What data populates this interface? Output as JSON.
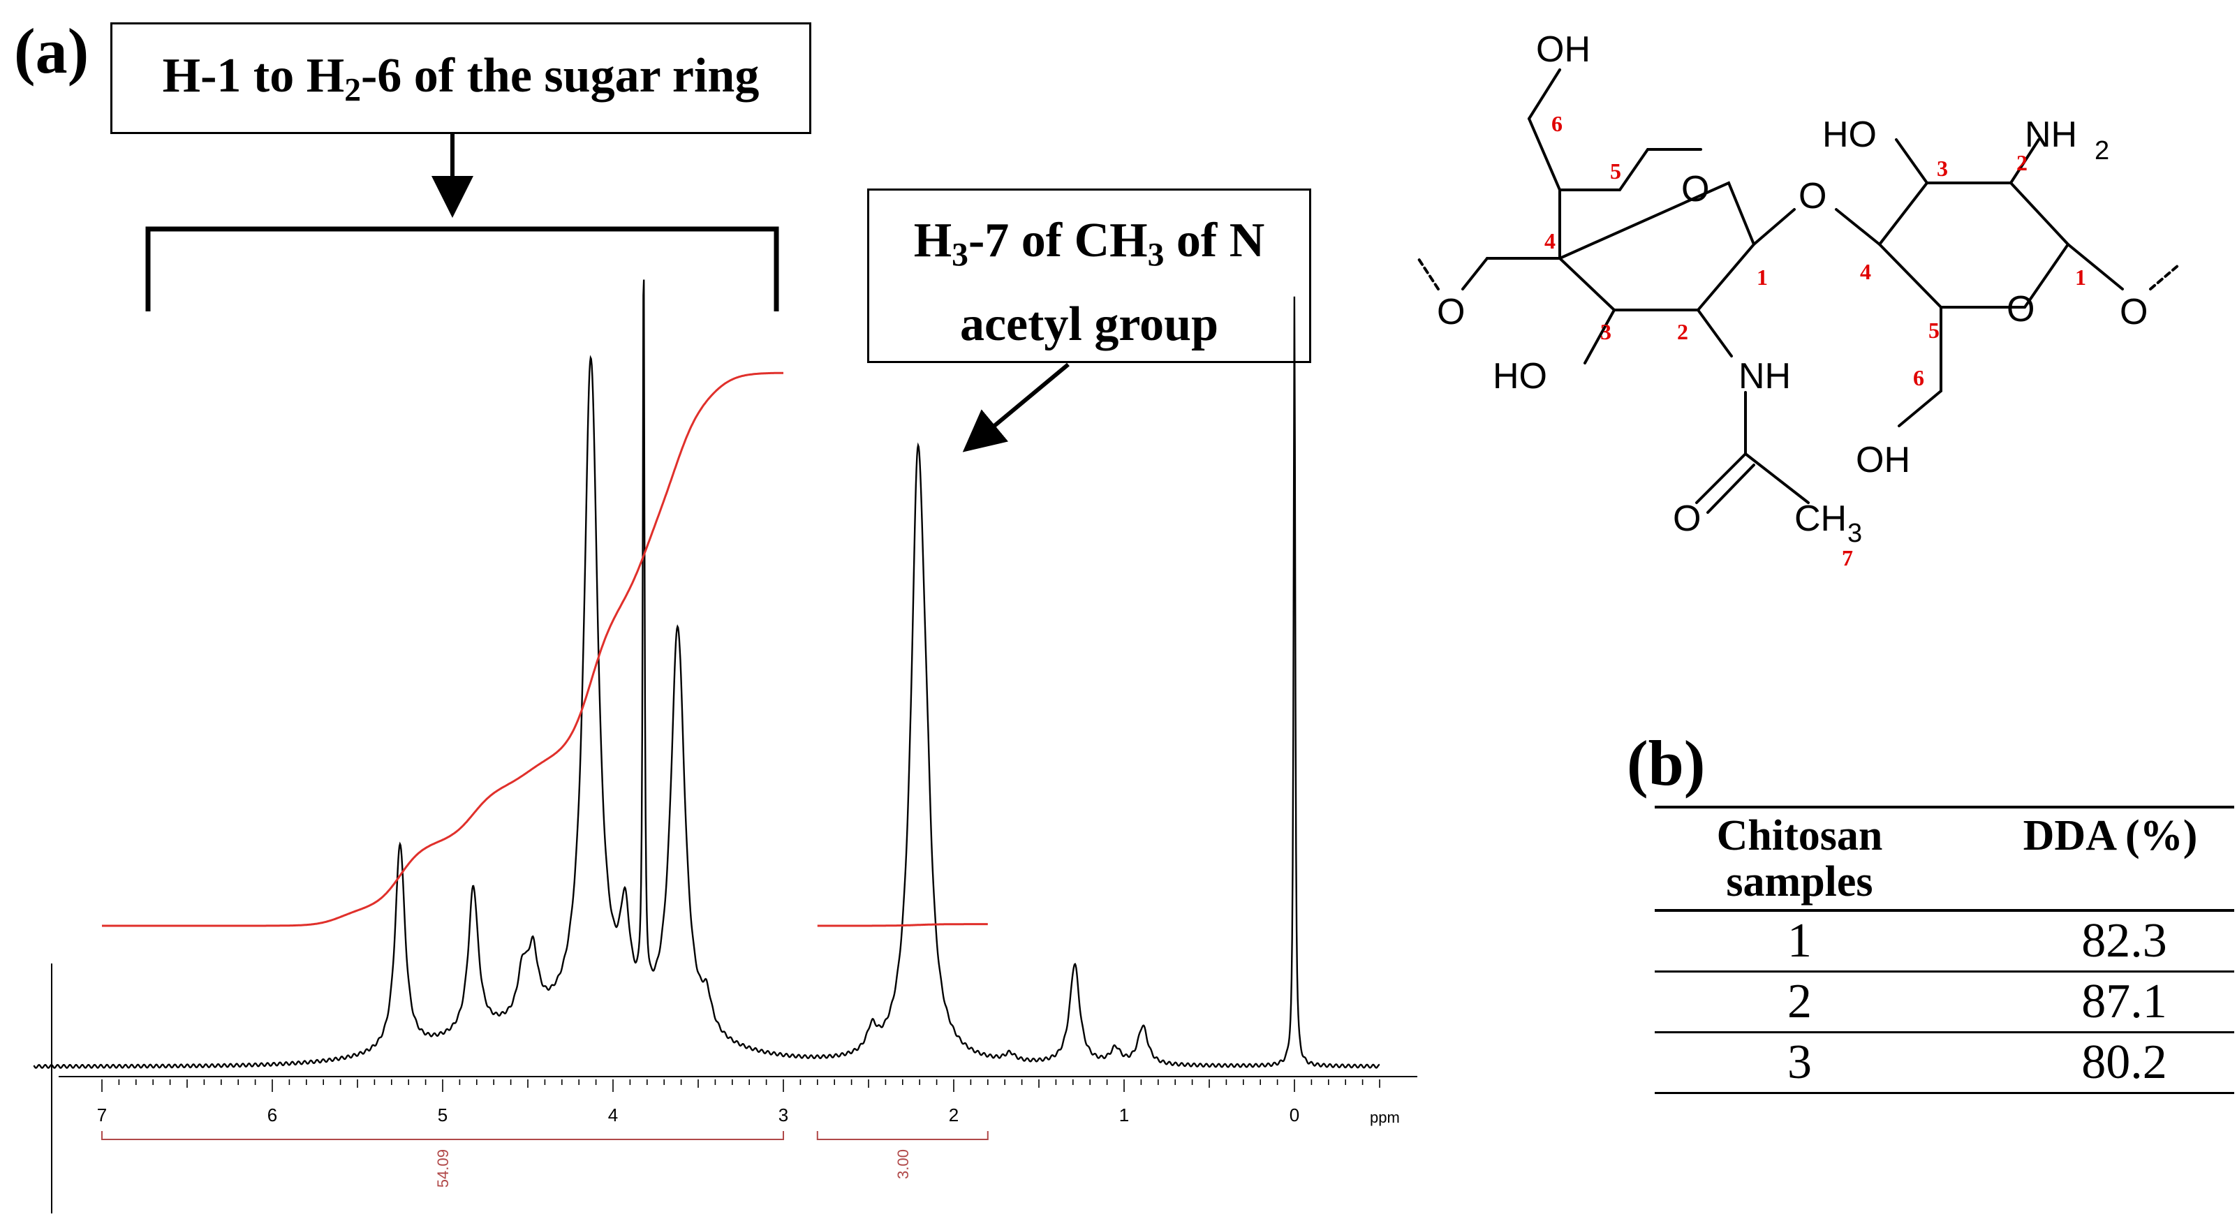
{
  "panel_a_label": "(a)",
  "panel_b_label": "(b)",
  "callout_sugar": {
    "prefix": "H-1 to H",
    "sub": "2",
    "suffix": "-6 of the sugar ring"
  },
  "callout_acetyl": {
    "line1_prefix": "H",
    "line1_sub1": "3",
    "line1_mid": "-7 of CH",
    "line1_sub2": "3",
    "line1_suffix": " of N",
    "line2": "acetyl group"
  },
  "chart_data": {
    "type": "line",
    "xlabel": "ppm",
    "x_ticks": [
      "7",
      "6",
      "5",
      "4",
      "3",
      "2",
      "1",
      "0"
    ],
    "xlim": [
      7.4,
      -0.5
    ],
    "x_reversed": true,
    "series": [
      {
        "kind": "spectrum",
        "peaks": [
          {
            "x": 5.25,
            "height": 0.27
          },
          {
            "x": 4.82,
            "height": 0.19
          },
          {
            "x": 4.53,
            "height": 0.06
          },
          {
            "x": 4.47,
            "height": 0.08
          },
          {
            "x": 4.13,
            "height": 0.86
          },
          {
            "x": 3.93,
            "height": 0.12
          },
          {
            "x": 3.82,
            "height": 0.99
          },
          {
            "x": 3.62,
            "height": 0.53
          },
          {
            "x": 3.45,
            "height": 0.04
          },
          {
            "x": 2.48,
            "height": 0.03
          },
          {
            "x": 2.21,
            "height": 0.76
          },
          {
            "x": 2.16,
            "height": 0.13
          },
          {
            "x": 1.67,
            "height": 0.01
          },
          {
            "x": 1.29,
            "height": 0.13
          },
          {
            "x": 1.05,
            "height": 0.02
          },
          {
            "x": 0.89,
            "height": 0.05
          },
          {
            "x": 0.0,
            "height": 1.0
          }
        ]
      },
      {
        "kind": "integral",
        "from": 7.0,
        "to": 3.0,
        "steps": [
          [
            5.6,
            0.03
          ],
          [
            5.25,
            0.12
          ],
          [
            4.82,
            0.1
          ],
          [
            4.5,
            0.05
          ],
          [
            4.13,
            0.27
          ],
          [
            3.82,
            0.17
          ],
          [
            3.62,
            0.2
          ],
          [
            3.4,
            0.05
          ]
        ]
      },
      {
        "kind": "integral",
        "from": 2.8,
        "to": 1.8,
        "steps": [
          [
            2.21,
            0.04
          ]
        ]
      }
    ],
    "integral_regions": [
      {
        "from": 7.0,
        "to": 3.0,
        "value": "54.09"
      },
      {
        "from": 2.8,
        "to": 1.8,
        "value": "3.00"
      }
    ]
  },
  "structure": {
    "labels": [
      "OH",
      "HO",
      "NH",
      "2",
      "O",
      "O",
      "O",
      "HO",
      "NH",
      "O",
      "CH",
      "3",
      "OH",
      "O",
      "O"
    ],
    "numbers": [
      "6",
      "5",
      "4",
      "3",
      "2",
      "1",
      "3",
      "2",
      "4",
      "5",
      "1",
      "6",
      "7"
    ],
    "colors": {
      "numbers": "#e00000",
      "bonds": "#000000"
    }
  },
  "table": {
    "headers": [
      [
        "Chitosan",
        "samples"
      ],
      [
        "DDA (%)"
      ]
    ],
    "rows": [
      [
        "1",
        "82.3"
      ],
      [
        "2",
        "87.1"
      ],
      [
        "3",
        "80.2"
      ]
    ]
  },
  "colors": {
    "spectrum": "#000000",
    "integral": "#e0302b",
    "integral_bracket": "#b04848"
  }
}
